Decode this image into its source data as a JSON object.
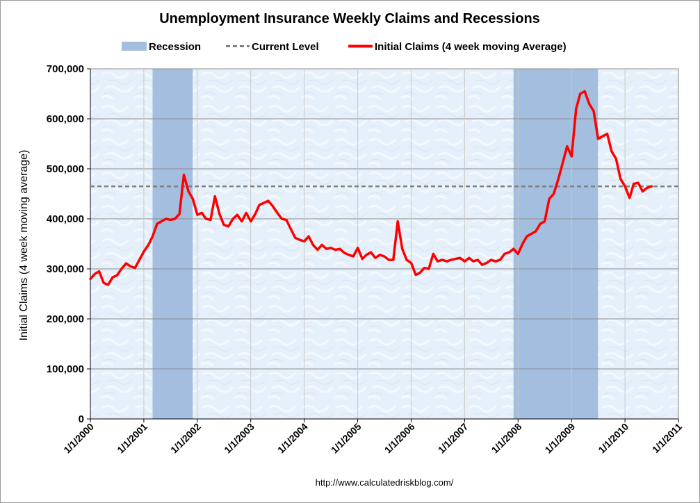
{
  "chart_data": {
    "type": "line",
    "title": "Unemployment Insurance Weekly Claims and Recessions",
    "ylabel": "Initial Claims (4 week moving average)",
    "xlabel": "",
    "source": "http://www.calculatedriskblog.com/",
    "ylim": [
      0,
      700000
    ],
    "xlim": [
      "2000-01-01",
      "2011-01-01"
    ],
    "y_ticks": [
      "0",
      "100,000",
      "200,000",
      "300,000",
      "400,000",
      "500,000",
      "600,000",
      "700,000"
    ],
    "x_ticks": [
      "1/1/2000",
      "1/1/2001",
      "1/1/2002",
      "1/1/2003",
      "1/1/2004",
      "1/1/2005",
      "1/1/2006",
      "1/1/2007",
      "1/1/2008",
      "1/1/2009",
      "1/1/2010",
      "1/1/2011"
    ],
    "grid": true,
    "legend_position": "top",
    "legend": {
      "recession": "Recession",
      "current": "Current Level",
      "claims": "Initial Claims (4 week moving Average)"
    },
    "colors": {
      "recession": "#a3bedf",
      "current": "#808080",
      "claims": "#ff0000",
      "plot_background": "#e6f0fa"
    },
    "recessions": [
      {
        "start": "2001-03-01",
        "end": "2001-11-30"
      },
      {
        "start": "2007-12-01",
        "end": "2009-06-30"
      }
    ],
    "current_level": 465000,
    "series": [
      {
        "name": "Initial Claims (4 week moving Average)",
        "points": [
          [
            "2000-01-01",
            280000
          ],
          [
            "2000-02-01",
            290000
          ],
          [
            "2000-03-01",
            295000
          ],
          [
            "2000-04-01",
            272000
          ],
          [
            "2000-05-01",
            268000
          ],
          [
            "2000-06-01",
            283000
          ],
          [
            "2000-07-01",
            287000
          ],
          [
            "2000-08-01",
            300000
          ],
          [
            "2000-09-01",
            311000
          ],
          [
            "2000-10-01",
            305000
          ],
          [
            "2000-11-01",
            302000
          ],
          [
            "2000-12-01",
            318000
          ],
          [
            "2001-01-01",
            335000
          ],
          [
            "2001-02-01",
            348000
          ],
          [
            "2001-03-01",
            365000
          ],
          [
            "2001-04-01",
            390000
          ],
          [
            "2001-05-01",
            395000
          ],
          [
            "2001-06-01",
            400000
          ],
          [
            "2001-07-01",
            398000
          ],
          [
            "2001-08-01",
            400000
          ],
          [
            "2001-09-01",
            410000
          ],
          [
            "2001-10-01",
            488000
          ],
          [
            "2001-11-01",
            455000
          ],
          [
            "2001-12-01",
            440000
          ],
          [
            "2002-01-01",
            408000
          ],
          [
            "2002-02-01",
            412000
          ],
          [
            "2002-03-01",
            400000
          ],
          [
            "2002-04-01",
            398000
          ],
          [
            "2002-05-01",
            445000
          ],
          [
            "2002-06-01",
            410000
          ],
          [
            "2002-07-01",
            388000
          ],
          [
            "2002-08-01",
            385000
          ],
          [
            "2002-09-01",
            400000
          ],
          [
            "2002-10-01",
            408000
          ],
          [
            "2002-11-01",
            395000
          ],
          [
            "2002-12-01",
            412000
          ],
          [
            "2003-01-01",
            395000
          ],
          [
            "2003-02-01",
            410000
          ],
          [
            "2003-03-01",
            428000
          ],
          [
            "2003-04-01",
            432000
          ],
          [
            "2003-05-01",
            436000
          ],
          [
            "2003-06-01",
            425000
          ],
          [
            "2003-07-01",
            412000
          ],
          [
            "2003-08-01",
            400000
          ],
          [
            "2003-09-01",
            398000
          ],
          [
            "2003-10-01",
            380000
          ],
          [
            "2003-11-01",
            362000
          ],
          [
            "2003-12-01",
            358000
          ],
          [
            "2004-01-01",
            355000
          ],
          [
            "2004-02-01",
            365000
          ],
          [
            "2004-03-01",
            348000
          ],
          [
            "2004-04-01",
            338000
          ],
          [
            "2004-05-01",
            348000
          ],
          [
            "2004-06-01",
            340000
          ],
          [
            "2004-07-01",
            342000
          ],
          [
            "2004-08-01",
            338000
          ],
          [
            "2004-09-01",
            340000
          ],
          [
            "2004-10-01",
            332000
          ],
          [
            "2004-11-01",
            328000
          ],
          [
            "2004-12-01",
            325000
          ],
          [
            "2005-01-01",
            342000
          ],
          [
            "2005-02-01",
            320000
          ],
          [
            "2005-03-01",
            328000
          ],
          [
            "2005-04-01",
            333000
          ],
          [
            "2005-05-01",
            322000
          ],
          [
            "2005-06-01",
            328000
          ],
          [
            "2005-07-01",
            325000
          ],
          [
            "2005-08-01",
            318000
          ],
          [
            "2005-09-01",
            318000
          ],
          [
            "2005-10-01",
            395000
          ],
          [
            "2005-11-01",
            340000
          ],
          [
            "2005-12-01",
            318000
          ],
          [
            "2006-01-01",
            312000
          ],
          [
            "2006-02-01",
            288000
          ],
          [
            "2006-03-01",
            292000
          ],
          [
            "2006-04-01",
            302000
          ],
          [
            "2006-05-01",
            300000
          ],
          [
            "2006-06-01",
            330000
          ],
          [
            "2006-07-01",
            315000
          ],
          [
            "2006-08-01",
            318000
          ],
          [
            "2006-09-01",
            315000
          ],
          [
            "2006-10-01",
            318000
          ],
          [
            "2006-11-01",
            320000
          ],
          [
            "2006-12-01",
            322000
          ],
          [
            "2007-01-01",
            315000
          ],
          [
            "2007-02-01",
            322000
          ],
          [
            "2007-03-01",
            315000
          ],
          [
            "2007-04-01",
            318000
          ],
          [
            "2007-05-01",
            308000
          ],
          [
            "2007-06-01",
            312000
          ],
          [
            "2007-07-01",
            318000
          ],
          [
            "2007-08-01",
            315000
          ],
          [
            "2007-09-01",
            318000
          ],
          [
            "2007-10-01",
            330000
          ],
          [
            "2007-11-01",
            333000
          ],
          [
            "2007-12-01",
            340000
          ],
          [
            "2008-01-01",
            330000
          ],
          [
            "2008-02-01",
            350000
          ],
          [
            "2008-03-01",
            365000
          ],
          [
            "2008-04-01",
            370000
          ],
          [
            "2008-05-01",
            375000
          ],
          [
            "2008-06-01",
            390000
          ],
          [
            "2008-07-01",
            395000
          ],
          [
            "2008-08-01",
            440000
          ],
          [
            "2008-09-01",
            450000
          ],
          [
            "2008-10-01",
            478000
          ],
          [
            "2008-11-01",
            512000
          ],
          [
            "2008-12-01",
            545000
          ],
          [
            "2009-01-01",
            525000
          ],
          [
            "2009-02-01",
            620000
          ],
          [
            "2009-03-01",
            650000
          ],
          [
            "2009-04-01",
            655000
          ],
          [
            "2009-05-01",
            630000
          ],
          [
            "2009-06-01",
            615000
          ],
          [
            "2009-07-01",
            560000
          ],
          [
            "2009-08-01",
            565000
          ],
          [
            "2009-09-01",
            570000
          ],
          [
            "2009-10-01",
            535000
          ],
          [
            "2009-11-01",
            520000
          ],
          [
            "2009-12-01",
            480000
          ],
          [
            "2010-01-01",
            465000
          ],
          [
            "2010-02-01",
            442000
          ],
          [
            "2010-03-01",
            470000
          ],
          [
            "2010-04-01",
            472000
          ],
          [
            "2010-05-01",
            455000
          ],
          [
            "2010-06-01",
            462000
          ],
          [
            "2010-07-01",
            465000
          ]
        ]
      }
    ]
  }
}
